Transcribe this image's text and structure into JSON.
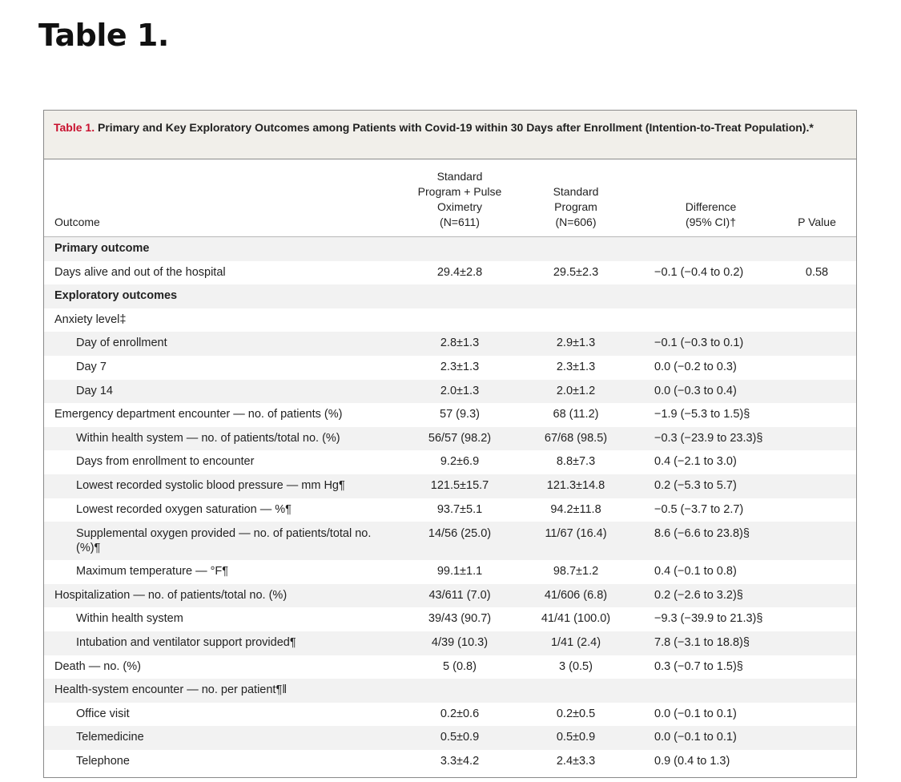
{
  "page_heading": "Table 1.",
  "caption": {
    "label": "Table 1.",
    "text": "Primary and Key Exploratory Outcomes among Patients with Covid-19 within 30 Days after Enrollment (Intention-to-Treat Population).*"
  },
  "columns": {
    "outcome": "Outcome",
    "group_a": "Standard\nProgram + Pulse\nOximetry\n(N=611)",
    "group_b": "Standard\nProgram\n(N=606)",
    "difference": "Difference\n(95% CI)†",
    "p_value": "P Value"
  },
  "rows": [
    {
      "outcome": "Primary outcome",
      "a": "",
      "b": "",
      "diff": "",
      "p": "",
      "kind": "section"
    },
    {
      "outcome": "Days alive and out of the hospital",
      "a": "29.4±2.8",
      "b": "29.5±2.3",
      "diff": "−0.1 (−0.4 to 0.2)",
      "p": "0.58",
      "kind": "normal"
    },
    {
      "outcome": "Exploratory outcomes",
      "a": "",
      "b": "",
      "diff": "",
      "p": "",
      "kind": "section"
    },
    {
      "outcome": "Anxiety level‡",
      "a": "",
      "b": "",
      "diff": "",
      "p": "",
      "kind": "normal"
    },
    {
      "outcome": "Day of enrollment",
      "a": "2.8±1.3",
      "b": "2.9±1.3",
      "diff": "−0.1 (−0.3 to 0.1)",
      "p": "",
      "kind": "indent"
    },
    {
      "outcome": "Day 7",
      "a": "2.3±1.3",
      "b": "2.3±1.3",
      "diff": "0.0 (−0.2 to 0.3)",
      "p": "",
      "kind": "indent"
    },
    {
      "outcome": "Day 14",
      "a": "2.0±1.3",
      "b": "2.0±1.2",
      "diff": "0.0 (−0.3 to 0.4)",
      "p": "",
      "kind": "indent"
    },
    {
      "outcome": "Emergency department encounter — no. of patients (%)",
      "a": "57 (9.3)",
      "b": "68 (11.2)",
      "diff": "−1.9 (−5.3 to 1.5)§",
      "p": "",
      "kind": "normal"
    },
    {
      "outcome": "Within health system — no. of patients/total no. (%)",
      "a": "56/57 (98.2)",
      "b": "67/68 (98.5)",
      "diff": "−0.3 (−23.9 to 23.3)§",
      "p": "",
      "kind": "indent"
    },
    {
      "outcome": "Days from enrollment to encounter",
      "a": "9.2±6.9",
      "b": "8.8±7.3",
      "diff": "0.4 (−2.1 to 3.0)",
      "p": "",
      "kind": "indent"
    },
    {
      "outcome": "Lowest recorded systolic blood pressure — mm Hg¶",
      "a": "121.5±15.7",
      "b": "121.3±14.8",
      "diff": "0.2 (−5.3 to 5.7)",
      "p": "",
      "kind": "indent"
    },
    {
      "outcome": "Lowest recorded oxygen saturation — %¶",
      "a": "93.7±5.1",
      "b": "94.2±11.8",
      "diff": "−0.5 (−3.7 to 2.7)",
      "p": "",
      "kind": "indent"
    },
    {
      "outcome": "Supplemental oxygen provided — no. of patients/total no. (%)¶",
      "a": "14/56 (25.0)",
      "b": "11/67 (16.4)",
      "diff": "8.6 (−6.6 to 23.8)§",
      "p": "",
      "kind": "indent tall"
    },
    {
      "outcome": "Maximum temperature — °F¶",
      "a": "99.1±1.1",
      "b": "98.7±1.2",
      "diff": "0.4 (−0.1 to 0.8)",
      "p": "",
      "kind": "indent"
    },
    {
      "outcome": "Hospitalization — no. of patients/total no. (%)",
      "a": "43/611 (7.0)",
      "b": "41/606 (6.8)",
      "diff": "0.2 (−2.6 to 3.2)§",
      "p": "",
      "kind": "normal"
    },
    {
      "outcome": "Within health system",
      "a": "39/43 (90.7)",
      "b": "41/41 (100.0)",
      "diff": "−9.3 (−39.9 to 21.3)§",
      "p": "",
      "kind": "indent"
    },
    {
      "outcome": "Intubation and ventilator support provided¶",
      "a": "4/39 (10.3)",
      "b": "1/41 (2.4)",
      "diff": "7.8 (−3.1 to 18.8)§",
      "p": "",
      "kind": "indent"
    },
    {
      "outcome": "Death — no. (%)",
      "a": "5 (0.8)",
      "b": "3 (0.5)",
      "diff": "0.3 (−0.7 to 1.5)§",
      "p": "",
      "kind": "normal"
    },
    {
      "outcome": "Health-system encounter — no. per patient¶‖",
      "a": "",
      "b": "",
      "diff": "",
      "p": "",
      "kind": "normal"
    },
    {
      "outcome": "Office visit",
      "a": "0.2±0.6",
      "b": "0.2±0.5",
      "diff": "0.0 (−0.1 to 0.1)",
      "p": "",
      "kind": "indent"
    },
    {
      "outcome": "Telemedicine",
      "a": "0.5±0.9",
      "b": "0.5±0.9",
      "diff": "0.0 (−0.1 to 0.1)",
      "p": "",
      "kind": "indent"
    },
    {
      "outcome": "Telephone",
      "a": "3.3±4.2",
      "b": "2.4±3.3",
      "diff": "0.9 (0.4 to 1.3)",
      "p": "",
      "kind": "indent"
    }
  ]
}
